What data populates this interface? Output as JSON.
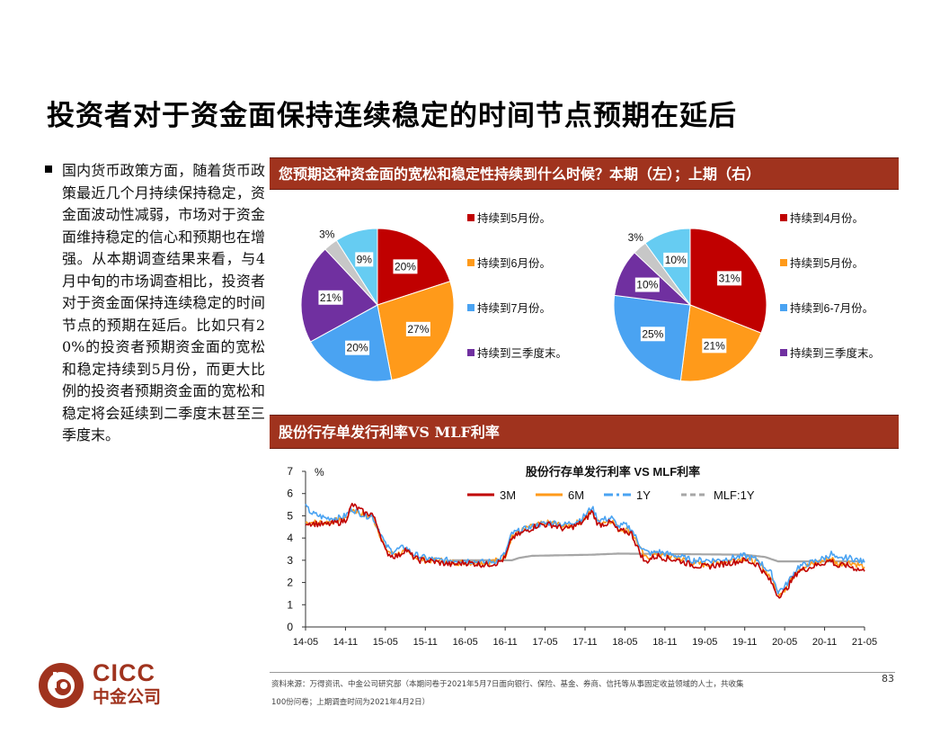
{
  "page": {
    "title": "投资者对于资金面保持连续稳定的时间节点预期在延后",
    "bullet_text": "国内货币政策方面，随着货币政策最近几个月持续保持稳定，资金面波动性减弱，市场对于资金面维持稳定的信心和预期也在增强。从本期调查结果来看，与4月中旬的市场调查相比，投资者对于资金面保持连续稳定的时间节点的预期在延后。比如只有20%的投资者预期资金面的宽松和稳定持续到5月份，而更大比例的投资者预期资金面的宽松和稳定将会延续到二季度末甚至三季度末。",
    "banner1": "您预期这种资金面的宽松和稳定性持续到什么时候？本期（左）；上期（右）",
    "banner2": "股份行存单发行利率VS MLF利率",
    "source_line1": "资料来源：万得资讯、中金公司研究部（本期问卷于2021年5月7日面向银行、保险、基金、券商、信托等从事固定收益领域的人士，共收集",
    "source_line2": "100份问卷；上期调查时间为2021年4月2日）",
    "page_number": "83",
    "logo_text": "CICC",
    "logo_cn": "中金公司",
    "colors": {
      "brand": "#a0331e",
      "red": "#c00000",
      "orange": "#ff9a1a",
      "blue": "#4aa3f2",
      "purple": "#7030a0",
      "grey": "#c7c7c7",
      "cyan": "#66ccf2"
    }
  },
  "chart_data": [
    {
      "type": "pie",
      "title": "本期",
      "labels": [
        "持续到5月份。",
        "持续到6月份。",
        "持续到7月份。",
        "持续到三季度末。",
        "",
        ""
      ],
      "values": [
        20,
        27,
        20,
        21,
        3,
        9
      ],
      "value_labels": [
        "20%",
        "27%",
        "20%",
        "21%",
        "3%",
        "9%"
      ],
      "colors": [
        "#c00000",
        "#ff9a1a",
        "#4aa3f2",
        "#7030a0",
        "#c7c7c7",
        "#66ccf2"
      ],
      "legend_count": 4,
      "legend": "right"
    },
    {
      "type": "pie",
      "title": "上期",
      "labels": [
        "持续到4月份。",
        "持续到5月份。",
        "持续到6-7月份。",
        "持续到三季度末。",
        "",
        ""
      ],
      "values": [
        31,
        21,
        25,
        10,
        3,
        10
      ],
      "value_labels": [
        "31%",
        "21%",
        "25%",
        "10%",
        "3%",
        "10%"
      ],
      "colors": [
        "#c00000",
        "#ff9a1a",
        "#4aa3f2",
        "#7030a0",
        "#c7c7c7",
        "#66ccf2"
      ],
      "legend_count": 4,
      "legend": "right"
    },
    {
      "type": "line",
      "title": "股份行存单发行利率 VS MLF利率",
      "ylabel": "%",
      "ylim": [
        0,
        7
      ],
      "yticks": [
        "0",
        "1",
        "2",
        "3",
        "4",
        "5",
        "6",
        "7"
      ],
      "xticks": [
        "14-05",
        "14-11",
        "15-05",
        "15-11",
        "16-05",
        "16-11",
        "17-05",
        "17-11",
        "18-05",
        "18-11",
        "19-05",
        "19-11",
        "20-05",
        "20-11",
        "21-05"
      ],
      "legend": "top",
      "series": [
        {
          "name": "3M",
          "color": "#c00000",
          "points": [
            [
              "14-05",
              4.7
            ],
            [
              "14-08",
              4.6
            ],
            [
              "14-10",
              4.7
            ],
            [
              "14-11",
              4.8
            ],
            [
              "14-12",
              5.5
            ],
            [
              "15-02",
              5.1
            ],
            [
              "15-03",
              5.1
            ],
            [
              "15-04",
              4.4
            ],
            [
              "15-05",
              3.4
            ],
            [
              "15-06",
              3.2
            ],
            [
              "15-07",
              3.2
            ],
            [
              "15-08",
              3.5
            ],
            [
              "15-09",
              3.2
            ],
            [
              "15-10",
              3.0
            ],
            [
              "15-11",
              3.0
            ],
            [
              "16-01",
              2.9
            ],
            [
              "16-03",
              2.8
            ],
            [
              "16-05",
              2.9
            ],
            [
              "16-08",
              2.8
            ],
            [
              "16-10",
              2.9
            ],
            [
              "16-11",
              3.1
            ],
            [
              "16-12",
              4.0
            ],
            [
              "17-02",
              4.3
            ],
            [
              "17-04",
              4.6
            ],
            [
              "17-06",
              4.6
            ],
            [
              "17-08",
              4.4
            ],
            [
              "17-10",
              4.6
            ],
            [
              "17-11",
              4.8
            ],
            [
              "17-12",
              5.2
            ],
            [
              "18-01",
              4.6
            ],
            [
              "18-03",
              4.7
            ],
            [
              "18-04",
              4.3
            ],
            [
              "18-05",
              4.3
            ],
            [
              "18-06",
              4.2
            ],
            [
              "18-07",
              3.5
            ],
            [
              "18-08",
              2.9
            ],
            [
              "18-09",
              3.1
            ],
            [
              "18-10",
              3.2
            ],
            [
              "18-11",
              3.1
            ],
            [
              "19-01",
              3.0
            ],
            [
              "19-03",
              2.8
            ],
            [
              "19-05",
              2.7
            ],
            [
              "19-07",
              2.8
            ],
            [
              "19-09",
              2.9
            ],
            [
              "19-11",
              3.0
            ],
            [
              "20-01",
              2.8
            ],
            [
              "20-03",
              2.0
            ],
            [
              "20-04",
              1.4
            ],
            [
              "20-05",
              1.6
            ],
            [
              "20-07",
              2.5
            ],
            [
              "20-09",
              2.7
            ],
            [
              "20-11",
              2.9
            ],
            [
              "20-12",
              3.0
            ],
            [
              "21-01",
              2.7
            ],
            [
              "21-02",
              2.8
            ],
            [
              "21-03",
              2.7
            ],
            [
              "21-04",
              2.6
            ],
            [
              "21-05",
              2.5
            ]
          ]
        },
        {
          "name": "6M",
          "color": "#ff9a1a",
          "points": [
            [
              "14-05",
              4.7
            ],
            [
              "14-08",
              4.7
            ],
            [
              "14-10",
              4.8
            ],
            [
              "14-11",
              4.9
            ],
            [
              "14-12",
              5.3
            ],
            [
              "15-02",
              5.0
            ],
            [
              "15-03",
              5.0
            ],
            [
              "15-04",
              4.3
            ],
            [
              "15-05",
              3.5
            ],
            [
              "15-06",
              3.3
            ],
            [
              "15-07",
              3.3
            ],
            [
              "15-08",
              3.4
            ],
            [
              "15-09",
              3.2
            ],
            [
              "15-10",
              3.1
            ],
            [
              "15-11",
              3.0
            ],
            [
              "16-01",
              3.0
            ],
            [
              "16-03",
              2.9
            ],
            [
              "16-05",
              2.9
            ],
            [
              "16-08",
              2.9
            ],
            [
              "16-10",
              3.0
            ],
            [
              "16-11",
              3.2
            ],
            [
              "16-12",
              4.1
            ],
            [
              "17-02",
              4.4
            ],
            [
              "17-04",
              4.6
            ],
            [
              "17-06",
              4.7
            ],
            [
              "17-08",
              4.5
            ],
            [
              "17-10",
              4.7
            ],
            [
              "17-11",
              4.9
            ],
            [
              "17-12",
              5.2
            ],
            [
              "18-01",
              4.7
            ],
            [
              "18-03",
              4.8
            ],
            [
              "18-04",
              4.4
            ],
            [
              "18-05",
              4.4
            ],
            [
              "18-06",
              4.3
            ],
            [
              "18-07",
              3.7
            ],
            [
              "18-08",
              3.1
            ],
            [
              "18-09",
              3.2
            ],
            [
              "18-10",
              3.3
            ],
            [
              "18-11",
              3.2
            ],
            [
              "19-01",
              3.1
            ],
            [
              "19-03",
              2.9
            ],
            [
              "19-05",
              2.8
            ],
            [
              "19-07",
              2.9
            ],
            [
              "19-09",
              3.0
            ],
            [
              "19-11",
              3.1
            ],
            [
              "20-01",
              2.9
            ],
            [
              "20-03",
              2.2
            ],
            [
              "20-04",
              1.5
            ],
            [
              "20-05",
              1.7
            ],
            [
              "20-07",
              2.6
            ],
            [
              "20-09",
              2.8
            ],
            [
              "20-11",
              3.0
            ],
            [
              "20-12",
              3.1
            ],
            [
              "21-01",
              2.8
            ],
            [
              "21-02",
              2.9
            ],
            [
              "21-03",
              2.9
            ],
            [
              "21-04",
              2.8
            ],
            [
              "21-05",
              2.7
            ]
          ]
        },
        {
          "name": "1Y",
          "color": "#4aa3f2",
          "points": [
            [
              "14-05",
              5.4
            ],
            [
              "14-06",
              5.1
            ],
            [
              "14-08",
              4.9
            ],
            [
              "14-10",
              4.9
            ],
            [
              "14-11",
              5.0
            ],
            [
              "14-12",
              5.3
            ],
            [
              "15-02",
              5.0
            ],
            [
              "15-03",
              5.0
            ],
            [
              "15-04",
              4.4
            ],
            [
              "15-05",
              3.7
            ],
            [
              "15-06",
              3.4
            ],
            [
              "15-07",
              3.5
            ],
            [
              "15-08",
              3.6
            ],
            [
              "15-09",
              3.3
            ],
            [
              "15-10",
              3.2
            ],
            [
              "15-11",
              3.1
            ],
            [
              "16-01",
              3.0
            ],
            [
              "16-03",
              3.0
            ],
            [
              "16-05",
              3.0
            ],
            [
              "16-08",
              2.9
            ],
            [
              "16-10",
              3.0
            ],
            [
              "16-11",
              3.3
            ],
            [
              "16-12",
              4.2
            ],
            [
              "17-02",
              4.4
            ],
            [
              "17-04",
              4.6
            ],
            [
              "17-06",
              4.7
            ],
            [
              "17-08",
              4.6
            ],
            [
              "17-10",
              4.8
            ],
            [
              "17-11",
              5.0
            ],
            [
              "17-12",
              5.4
            ],
            [
              "18-01",
              4.8
            ],
            [
              "18-03",
              4.9
            ],
            [
              "18-04",
              4.5
            ],
            [
              "18-05",
              4.6
            ],
            [
              "18-06",
              4.4
            ],
            [
              "18-07",
              3.8
            ],
            [
              "18-08",
              3.4
            ],
            [
              "18-09",
              3.3
            ],
            [
              "18-10",
              3.4
            ],
            [
              "18-11",
              3.3
            ],
            [
              "19-01",
              3.2
            ],
            [
              "19-03",
              3.0
            ],
            [
              "19-05",
              3.0
            ],
            [
              "19-07",
              3.0
            ],
            [
              "19-09",
              3.1
            ],
            [
              "19-11",
              3.2
            ],
            [
              "20-01",
              3.0
            ],
            [
              "20-03",
              2.4
            ],
            [
              "20-04",
              1.6
            ],
            [
              "20-05",
              1.8
            ],
            [
              "20-07",
              2.7
            ],
            [
              "20-09",
              2.9
            ],
            [
              "20-11",
              3.1
            ],
            [
              "20-12",
              3.3
            ],
            [
              "21-01",
              3.0
            ],
            [
              "21-02",
              3.1
            ],
            [
              "21-03",
              3.1
            ],
            [
              "21-04",
              3.0
            ],
            [
              "21-05",
              2.9
            ]
          ]
        },
        {
          "name": "MLF:1Y",
          "color": "#a6a6a6",
          "points": [
            [
              "16-03",
              3.0
            ],
            [
              "16-12",
              3.0
            ],
            [
              "17-01",
              3.1
            ],
            [
              "17-03",
              3.2
            ],
            [
              "17-12",
              3.25
            ],
            [
              "18-04",
              3.3
            ],
            [
              "19-11",
              3.25
            ],
            [
              "20-02",
              3.15
            ],
            [
              "20-04",
              2.95
            ],
            [
              "21-05",
              2.95
            ]
          ]
        }
      ]
    }
  ]
}
